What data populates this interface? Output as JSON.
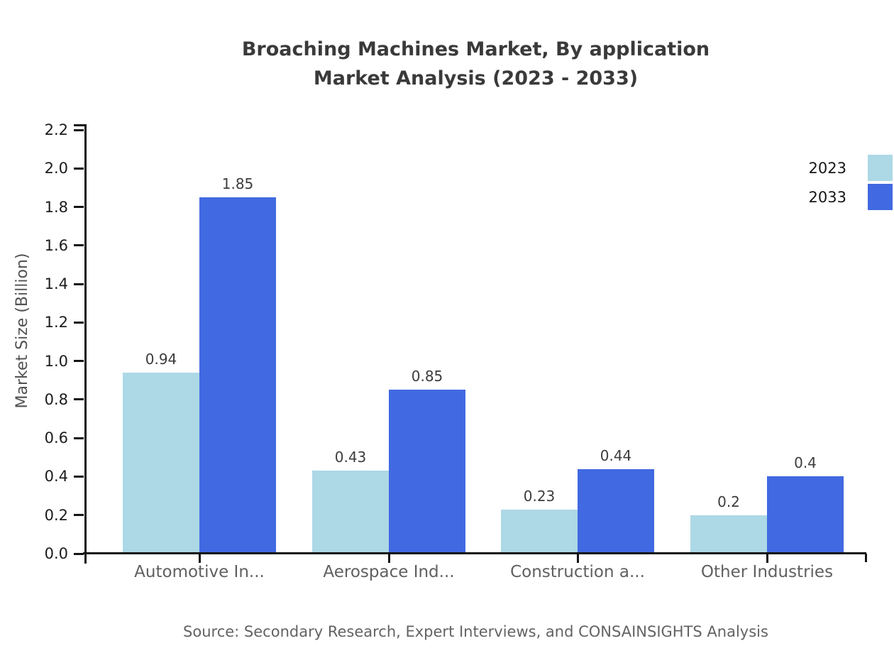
{
  "title": {
    "line1": "Broaching Machines Market, By application",
    "line2": "Market Analysis (2023 - 2033)"
  },
  "legend": [
    {
      "label": "2023",
      "color": "#ADD8E6"
    },
    {
      "label": "2033",
      "color": "#4169E1"
    }
  ],
  "source": "Source: Secondary Research, Expert Interviews, and CONSAINSIGHTS Analysis",
  "chart_data": {
    "type": "bar",
    "title": "Broaching Machines Market, By application Market Analysis (2023 - 2033)",
    "categories": [
      "Automotive In...",
      "Aerospace Ind...",
      "Construction a...",
      "Other Industries"
    ],
    "series": [
      {
        "name": "2023",
        "color": "#ADD8E6",
        "values": [
          0.94,
          0.43,
          0.23,
          0.2
        ]
      },
      {
        "name": "2033",
        "color": "#4169E1",
        "values": [
          1.85,
          0.85,
          0.44,
          0.4
        ]
      }
    ],
    "value_labels": [
      "0.94",
      "1.85",
      "0.43",
      "0.85",
      "0.23",
      "0.44",
      "0.2",
      "0.4"
    ],
    "xlabel": "",
    "ylabel": "Market Size (Billion)",
    "ylim": [
      0,
      2.2
    ],
    "ytick_step": 0.2,
    "ytick_labels": [
      "0.0",
      "0.2",
      "0.4",
      "0.6",
      "0.8",
      "1.0",
      "1.2",
      "1.4",
      "1.6",
      "1.8",
      "2.0",
      "2.2"
    ],
    "grid": false,
    "legend_position": "top-right",
    "bar_value_labels_shown": true
  }
}
